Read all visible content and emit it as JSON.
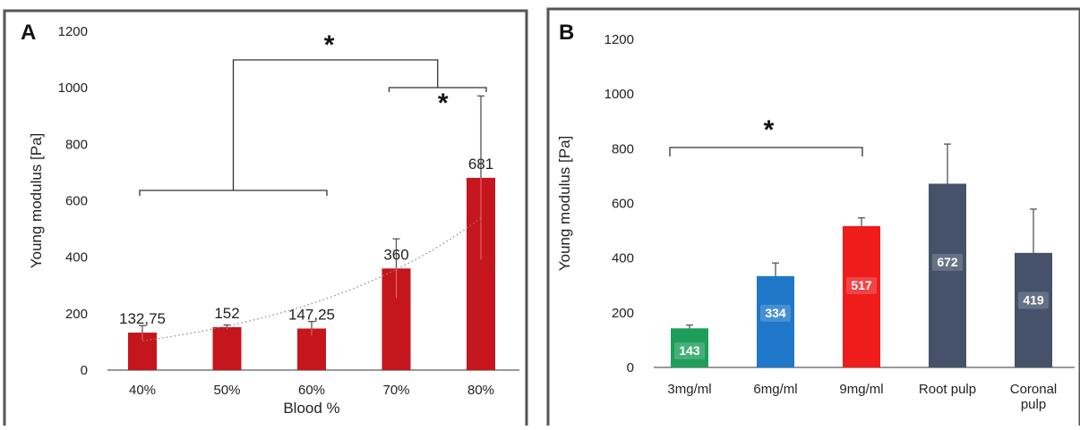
{
  "chart_data": [
    {
      "type": "bar",
      "panel": "A",
      "title": "",
      "xlabel": "Blood %",
      "ylabel": "Young modulus [Pa]",
      "ylim": [
        0,
        1200
      ],
      "yticks": [
        0,
        200,
        400,
        600,
        800,
        1000,
        1200
      ],
      "categories": [
        "40%",
        "50%",
        "60%",
        "70%",
        "80%"
      ],
      "values": [
        132.75,
        152,
        147.25,
        360,
        681
      ],
      "value_labels": [
        "132,75",
        "152",
        "147,25",
        "360",
        "681"
      ],
      "errors": [
        25,
        8,
        25,
        105,
        290
      ],
      "bar_colors": [
        "#c4161c",
        "#c4161c",
        "#c4161c",
        "#c4161c",
        "#c4161c"
      ],
      "trendline": "exponential, dotted",
      "significance": [
        {
          "label": "*",
          "from": [
            "40%",
            "60%"
          ],
          "to": [
            "70%",
            "80%"
          ]
        },
        {
          "label": "*",
          "from": [
            "70%"
          ],
          "to": [
            "80%"
          ]
        }
      ]
    },
    {
      "type": "bar",
      "panel": "B",
      "title": "",
      "xlabel": "",
      "ylabel": "Young modulus [Pa]",
      "ylim": [
        0,
        1200
      ],
      "yticks": [
        0,
        200,
        400,
        600,
        800,
        1000,
        1200
      ],
      "categories": [
        "3mg/ml",
        "6mg/ml",
        "9mg/ml",
        "Root pulp",
        "Coronal pulp"
      ],
      "category_lines": [
        [
          "3mg/ml"
        ],
        [
          "6mg/ml"
        ],
        [
          "9mg/ml"
        ],
        [
          "Root pulp"
        ],
        [
          "Coronal",
          "pulp"
        ]
      ],
      "values": [
        143,
        334,
        517,
        672,
        419
      ],
      "value_labels": [
        "143",
        "334",
        "517",
        "672",
        "419"
      ],
      "errors": [
        12,
        48,
        30,
        145,
        160
      ],
      "bar_colors": [
        "#1e9e5a",
        "#1f77c9",
        "#ef1c1c",
        "#45526a",
        "#45526a"
      ],
      "significance": [
        {
          "label": "*",
          "from": [
            "3mg/ml"
          ],
          "to": [
            "9mg/ml"
          ]
        }
      ]
    }
  ]
}
